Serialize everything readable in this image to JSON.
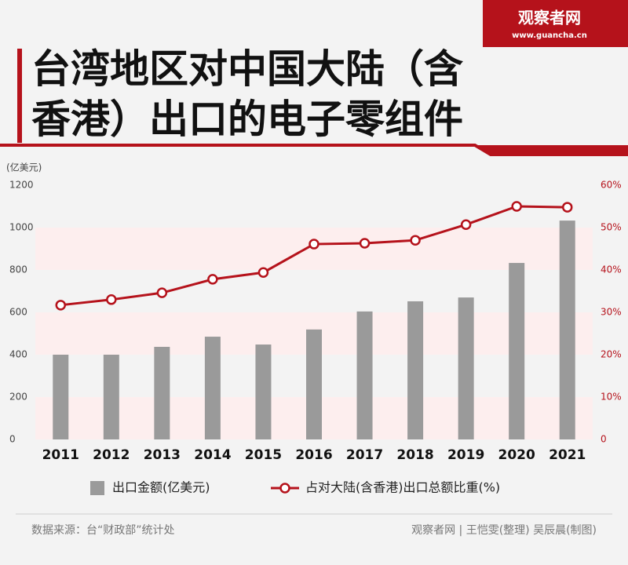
{
  "brand": {
    "name": "观察者网",
    "url": "www.guancha.cn"
  },
  "chart_data": {
    "type": "bar",
    "title": "台湾地区对中国大陆（含香港）出口的电子零组件",
    "y_unit": "(亿美元)",
    "categories": [
      "2011",
      "2012",
      "2013",
      "2014",
      "2015",
      "2016",
      "2017",
      "2018",
      "2019",
      "2020",
      "2021"
    ],
    "series": [
      {
        "name": "出口金额(亿美元)",
        "type": "bar",
        "color": "#9a9a9a",
        "values": [
          400,
          400,
          437,
          485,
          448,
          519,
          604,
          652,
          670,
          833,
          1033
        ]
      },
      {
        "name": "占对大陆(含香港)出口总额比重(%)",
        "type": "line",
        "axis": "y2",
        "color": "#b5121b",
        "values": [
          31.7,
          33,
          34.6,
          37.8,
          39.4,
          46.1,
          46.3,
          47,
          50.7,
          55,
          54.8
        ]
      }
    ],
    "ylim": [
      0,
      1200
    ],
    "yticks": [
      0,
      200,
      400,
      600,
      800,
      1000,
      1200
    ],
    "y2lim": [
      0,
      60
    ],
    "y2ticks": [
      {
        "value": 0,
        "label": "0"
      },
      {
        "value": 10,
        "label": "10%"
      },
      {
        "value": 20,
        "label": "20%"
      },
      {
        "value": 30,
        "label": "30%"
      },
      {
        "value": 40,
        "label": "40%"
      },
      {
        "value": 50,
        "label": "50%"
      },
      {
        "value": 60,
        "label": "60%"
      }
    ],
    "band_color": "#fdeeee",
    "source": "数据来源：台“财政部”统计处",
    "credit": "观察者网 | 王恺雯(整理)  吴辰晨(制图)"
  }
}
